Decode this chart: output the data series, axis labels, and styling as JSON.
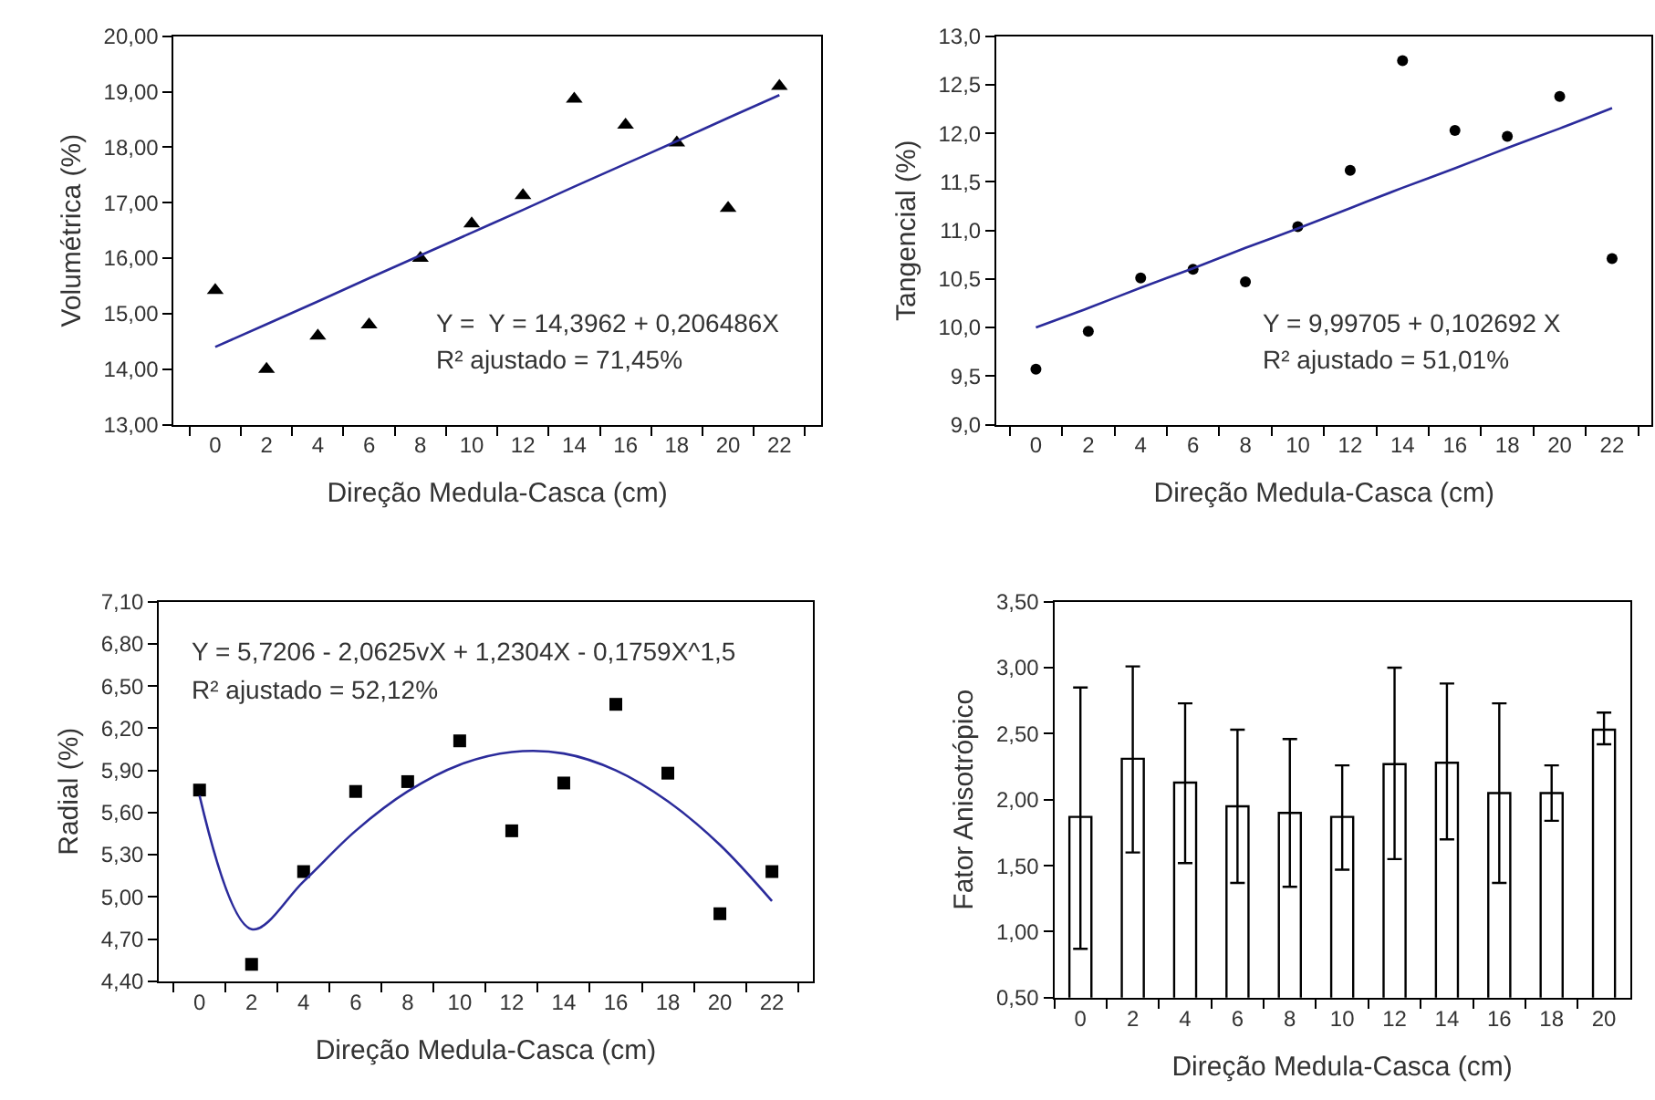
{
  "chart_data": [
    {
      "type": "scatter",
      "xlabel": "Direção Medula-Casca (cm)",
      "ylabel": "Volumétrica (%)",
      "categories": [
        "0",
        "2",
        "4",
        "6",
        "8",
        "10",
        "12",
        "14",
        "16",
        "18",
        "20",
        "22"
      ],
      "series": [
        {
          "type": "scatter",
          "marker": "triangle",
          "color": "#000000",
          "values": [
            15.42,
            14.0,
            14.6,
            14.8,
            16.0,
            16.62,
            17.13,
            18.87,
            18.4,
            18.08,
            16.9,
            19.1
          ]
        },
        {
          "type": "line",
          "marker": "none",
          "color": "#2b2b9b",
          "values": [
            14.4,
            14.81,
            15.22,
            15.64,
            16.05,
            16.46,
            16.87,
            17.29,
            17.7,
            18.11,
            18.53,
            18.94
          ]
        }
      ],
      "ylim": [
        13,
        20
      ],
      "yticks": [
        {
          "value": 13,
          "label": "13,00"
        },
        {
          "value": 14,
          "label": "14,00"
        },
        {
          "value": 15,
          "label": "15,00"
        },
        {
          "value": 16,
          "label": "16,00"
        },
        {
          "value": 17,
          "label": "17,00"
        },
        {
          "value": 18,
          "label": "18,00"
        },
        {
          "value": 19,
          "label": "19,00"
        },
        {
          "value": 20,
          "label": "20,00"
        }
      ],
      "annotations": [
        "Y =  Y = 14,3962 + 0,206486X",
        "R² ajustado = 71,45%"
      ]
    },
    {
      "type": "scatter",
      "xlabel": "Direção Medula-Casca (cm)",
      "ylabel": "Tangencial (%)",
      "categories": [
        "0",
        "2",
        "4",
        "6",
        "8",
        "10",
        "12",
        "14",
        "16",
        "18",
        "20",
        "22"
      ],
      "series": [
        {
          "type": "scatter",
          "marker": "circle",
          "color": "#000000",
          "values": [
            9.57,
            9.96,
            10.51,
            10.6,
            10.47,
            11.04,
            11.62,
            12.75,
            12.03,
            11.97,
            12.38,
            10.71
          ]
        },
        {
          "type": "line",
          "marker": "none",
          "color": "#2b2b9b",
          "values": [
            10.0,
            10.2,
            10.41,
            10.61,
            10.82,
            11.02,
            11.23,
            11.44,
            11.64,
            11.85,
            12.05,
            12.26
          ]
        }
      ],
      "ylim": [
        9,
        13
      ],
      "yticks": [
        {
          "value": 9,
          "label": "9,0"
        },
        {
          "value": 9.5,
          "label": "9,5"
        },
        {
          "value": 10,
          "label": "10,0"
        },
        {
          "value": 10.5,
          "label": "10,5"
        },
        {
          "value": 11,
          "label": "11,0"
        },
        {
          "value": 11.5,
          "label": "11,5"
        },
        {
          "value": 12,
          "label": "12,0"
        },
        {
          "value": 12.5,
          "label": "12,5"
        },
        {
          "value": 13,
          "label": "13,0"
        }
      ],
      "annotations": [
        "Y = 9,99705 + 0,102692 X",
        "R² ajustado = 51,01%"
      ]
    },
    {
      "type": "scatter",
      "xlabel": "Direção Medula-Casca (cm)",
      "ylabel": "Radial (%)",
      "categories": [
        "0",
        "2",
        "4",
        "6",
        "8",
        "10",
        "12",
        "14",
        "16",
        "18",
        "20",
        "22"
      ],
      "series": [
        {
          "type": "scatter",
          "marker": "square",
          "color": "#000000",
          "values": [
            5.76,
            4.52,
            5.18,
            5.75,
            5.82,
            6.11,
            5.47,
            5.81,
            6.37,
            5.88,
            4.88,
            5.18
          ]
        },
        {
          "type": "line",
          "marker": "none",
          "color": "#2b2b9b",
          "values": [
            5.72,
            4.77,
            5.11,
            5.47,
            5.75,
            5.94,
            6.03,
            6.02,
            5.9,
            5.68,
            5.37,
            4.97
          ]
        }
      ],
      "ylim": [
        4.4,
        7.1
      ],
      "yticks": [
        {
          "value": 4.4,
          "label": "4,40"
        },
        {
          "value": 4.7,
          "label": "4,70"
        },
        {
          "value": 5.0,
          "label": "5,00"
        },
        {
          "value": 5.3,
          "label": "5,30"
        },
        {
          "value": 5.6,
          "label": "5,60"
        },
        {
          "value": 5.9,
          "label": "5,90"
        },
        {
          "value": 6.2,
          "label": "6,20"
        },
        {
          "value": 6.5,
          "label": "6,50"
        },
        {
          "value": 6.8,
          "label": "6,80"
        },
        {
          "value": 7.1,
          "label": "7,10"
        }
      ],
      "annotations": [
        "Y = 5,7206 - 2,0625vX + 1,2304X - 0,1759X^1,5",
        "R² ajustado = 52,12%"
      ]
    },
    {
      "type": "bar",
      "xlabel": "Direção Medula-Casca (cm)",
      "ylabel": "Fator Anisotrópico",
      "categories": [
        "0",
        "2",
        "4",
        "6",
        "8",
        "10",
        "12",
        "14",
        "16",
        "18",
        "20"
      ],
      "series": [
        {
          "color": "#ffffff",
          "values": [
            1.87,
            2.31,
            2.13,
            1.95,
            1.9,
            1.87,
            2.27,
            2.28,
            2.05,
            2.05,
            2.53
          ],
          "errors": [
            [
              0.87,
              2.85
            ],
            [
              1.6,
              3.01
            ],
            [
              1.52,
              2.73
            ],
            [
              1.37,
              2.53
            ],
            [
              1.34,
              2.46
            ],
            [
              1.47,
              2.26
            ],
            [
              1.55,
              3.0
            ],
            [
              1.7,
              2.88
            ],
            [
              1.37,
              2.73
            ],
            [
              1.84,
              2.26
            ],
            [
              2.42,
              2.66
            ]
          ]
        }
      ],
      "ylim": [
        0.5,
        3.5
      ],
      "yticks": [
        {
          "value": 0.5,
          "label": "0,50"
        },
        {
          "value": 1.0,
          "label": "1,00"
        },
        {
          "value": 1.5,
          "label": "1,50"
        },
        {
          "value": 2.0,
          "label": "2,00"
        },
        {
          "value": 2.5,
          "label": "2,50"
        },
        {
          "value": 3.0,
          "label": "3,00"
        },
        {
          "value": 3.5,
          "label": "3,50"
        }
      ]
    }
  ]
}
